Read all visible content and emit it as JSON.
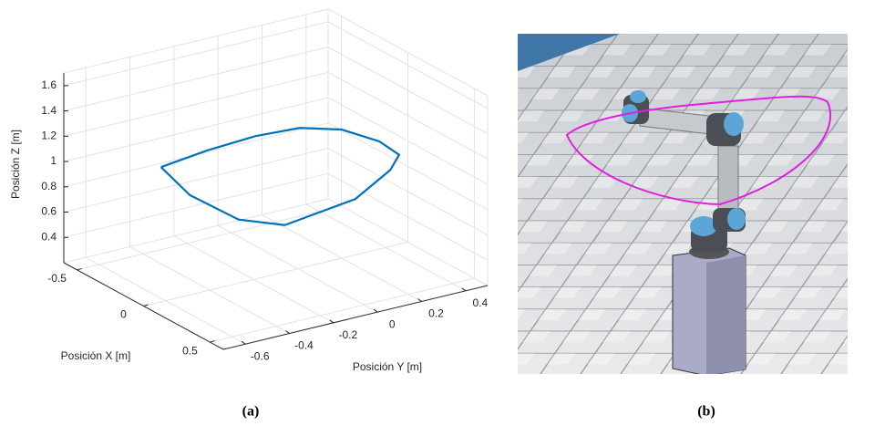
{
  "chart_data": {
    "type": "line3d",
    "xlabel": "Posición X [m]",
    "ylabel": "Posición Y [m]",
    "zlabel": "Posición Z [m]",
    "xlim": [
      -0.6,
      0.6
    ],
    "ylim": [
      -0.7,
      0.5
    ],
    "zlim": [
      0.2,
      1.7
    ],
    "xticks": [
      -0.5,
      0,
      0.5
    ],
    "yticks": [
      -0.6,
      -0.4,
      -0.2,
      0,
      0.2,
      0.4
    ],
    "zticks": [
      0.4,
      0.6,
      0.8,
      1,
      1.2,
      1.4,
      1.6
    ],
    "grid": true,
    "color": "#0072bd",
    "x": [
      -0.2,
      -0.35,
      -0.4,
      -0.4,
      -0.3,
      -0.1,
      0.1,
      0.2,
      0.35,
      0.4,
      0.3,
      0.05,
      -0.2
    ],
    "y": [
      -0.5,
      -0.2,
      0.05,
      0.25,
      0.38,
      0.43,
      0.4,
      0.3,
      0.05,
      -0.3,
      -0.45,
      -0.52,
      -0.5
    ],
    "z": [
      1.1,
      1.02,
      1.0,
      0.98,
      0.97,
      0.97,
      0.99,
      0.97,
      0.93,
      0.9,
      0.95,
      1.03,
      1.1
    ]
  },
  "captions": [
    "(a)",
    "(b)"
  ]
}
